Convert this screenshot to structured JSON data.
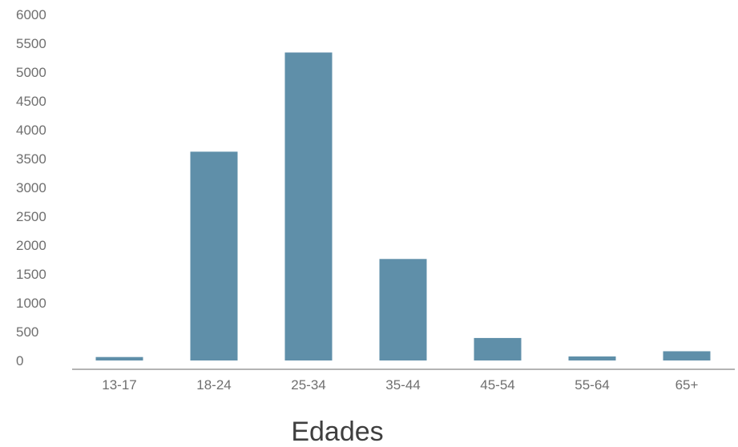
{
  "chart_data": {
    "type": "bar",
    "categories": [
      "13-17",
      "18-24",
      "25-34",
      "35-44",
      "45-54",
      "55-64",
      "65+"
    ],
    "values": [
      60,
      3620,
      5340,
      1760,
      390,
      70,
      160
    ],
    "title": "",
    "xlabel": "Edades",
    "ylabel": "",
    "ylim": [
      0,
      6000
    ],
    "yticks": [
      0,
      500,
      1000,
      1500,
      2000,
      2500,
      3000,
      3500,
      4000,
      4500,
      5000,
      5500,
      6000
    ],
    "grid": false,
    "legend": "none",
    "bar_color": "#5f8fa9",
    "axis_color": "#9a9a9a"
  }
}
